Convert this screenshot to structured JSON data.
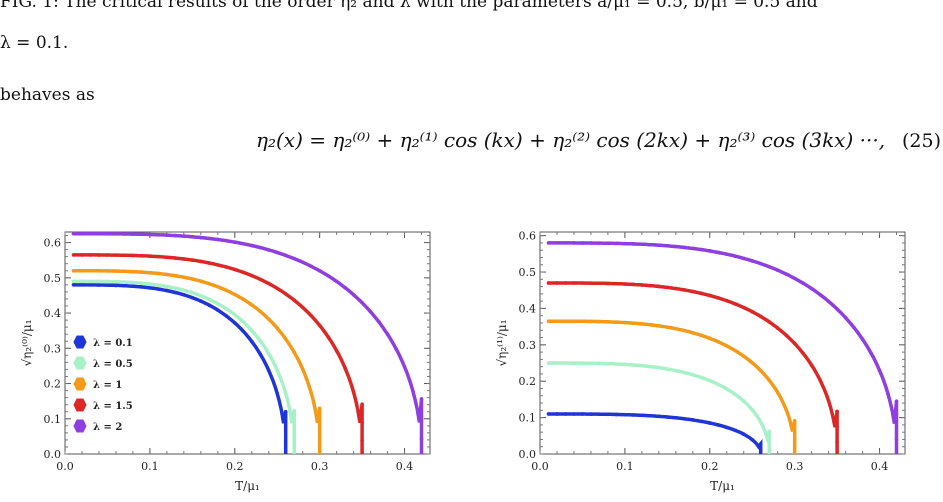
{
  "text": {
    "line1": "FIG. 1: The critical results of the order η₂ and λ with the parameters a/μ₁ = 0.5, b/μ₁ = 0.5 and",
    "line2": "λ = 0.1.",
    "line3": "behaves as",
    "equation": "η₂(x) = η₂⁽⁰⁾ + η₂⁽¹⁾ cos (kx) + η₂⁽²⁾ cos (2kx) + η₂⁽³⁾ cos (3kx) ···,",
    "equation_number": "(25)"
  },
  "chart_data": [
    {
      "type": "scatter",
      "xlabel": "T/μ₁",
      "ylabel": "√η₂⁽⁰⁾/μ₁",
      "xlim": [
        0.0,
        0.43
      ],
      "ylim": [
        0.0,
        0.63
      ],
      "xticks": [
        "0.0",
        "0.1",
        "0.2",
        "0.3",
        "0.4"
      ],
      "yticks": [
        "0.0",
        "0.1",
        "0.2",
        "0.3",
        "0.4",
        "0.5",
        "0.6"
      ],
      "legend_position": "lower-left",
      "series": [
        {
          "name": "λ = 0.1",
          "color": "#1f35d8",
          "y0": 0.48,
          "tc": 0.26
        },
        {
          "name": "λ = 0.5",
          "color": "#a8f0c8",
          "y0": 0.49,
          "tc": 0.27
        },
        {
          "name": "λ = 1",
          "color": "#f39a19",
          "y0": 0.52,
          "tc": 0.3
        },
        {
          "name": "λ = 1.5",
          "color": "#dc2727",
          "y0": 0.565,
          "tc": 0.35
        },
        {
          "name": "λ = 2",
          "color": "#8f3ee0",
          "y0": 0.625,
          "tc": 0.42
        }
      ]
    },
    {
      "type": "scatter",
      "xlabel": "T/μ₁",
      "ylabel": "√η₂⁽¹⁾/μ₁",
      "xlim": [
        0.0,
        0.43
      ],
      "ylim": [
        0.0,
        0.61
      ],
      "xticks": [
        "0.0",
        "0.1",
        "0.2",
        "0.3",
        "0.4"
      ],
      "yticks": [
        "0.0",
        "0.1",
        "0.2",
        "0.3",
        "0.4",
        "0.5",
        "0.6"
      ],
      "series": [
        {
          "color": "#1f35d8",
          "y0": 0.11,
          "tc": 0.26
        },
        {
          "color": "#a8f0c8",
          "y0": 0.25,
          "tc": 0.27
        },
        {
          "color": "#f39a19",
          "y0": 0.365,
          "tc": 0.3
        },
        {
          "color": "#dc2727",
          "y0": 0.47,
          "tc": 0.35
        },
        {
          "color": "#8f3ee0",
          "y0": 0.58,
          "tc": 0.42
        }
      ]
    }
  ]
}
